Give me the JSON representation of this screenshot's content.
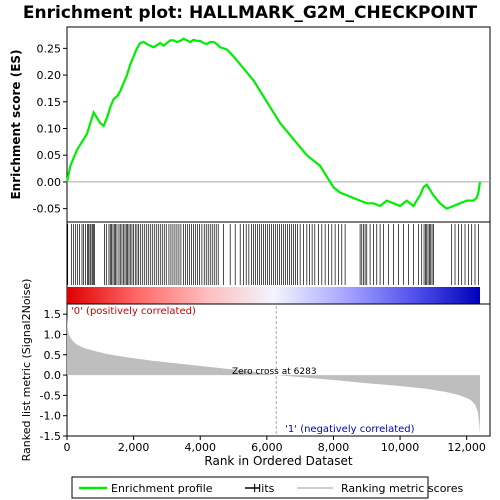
{
  "chart_data": {
    "type": "line",
    "title": "Enrichment plot: HALLMARK_G2M_CHECKPOINT",
    "es_panel": {
      "ylabel": "Enrichment score (ES)",
      "ylim": [
        -0.075,
        0.29
      ],
      "yticks": [
        -0.05,
        0.0,
        0.05,
        0.1,
        0.15,
        0.2,
        0.25
      ],
      "ytick_labels": [
        "-0.05",
        "0.00",
        "0.05",
        "0.10",
        "0.15",
        "0.20",
        "0.25"
      ],
      "series": [
        {
          "name": "Enrichment profile",
          "color": "#00ee00",
          "x": [
            0,
            100,
            200,
            300,
            400,
            500,
            600,
            700,
            800,
            900,
            1000,
            1100,
            1200,
            1300,
            1400,
            1500,
            1600,
            1700,
            1800,
            1900,
            2000,
            2100,
            2200,
            2300,
            2400,
            2500,
            2600,
            2700,
            2800,
            2900,
            3000,
            3100,
            3200,
            3300,
            3400,
            3500,
            3600,
            3700,
            3800,
            3900,
            4000,
            4100,
            4200,
            4300,
            4400,
            4500,
            4600,
            4800,
            5000,
            5200,
            5400,
            5600,
            5800,
            6000,
            6200,
            6400,
            6600,
            6800,
            7000,
            7200,
            7400,
            7600,
            7800,
            8000,
            8200,
            8400,
            8600,
            8800,
            9000,
            9200,
            9400,
            9600,
            9800,
            10000,
            10200,
            10400,
            10600,
            10700,
            10800,
            10900,
            11000,
            11200,
            11400,
            11600,
            11800,
            12000,
            12200,
            12300,
            12350,
            12400
          ],
          "y": [
            0.0,
            0.03,
            0.045,
            0.06,
            0.07,
            0.08,
            0.09,
            0.11,
            0.13,
            0.12,
            0.11,
            0.105,
            0.12,
            0.14,
            0.155,
            0.16,
            0.17,
            0.185,
            0.2,
            0.22,
            0.235,
            0.25,
            0.26,
            0.262,
            0.258,
            0.255,
            0.252,
            0.256,
            0.26,
            0.255,
            0.26,
            0.265,
            0.265,
            0.262,
            0.264,
            0.268,
            0.265,
            0.262,
            0.266,
            0.264,
            0.264,
            0.26,
            0.258,
            0.262,
            0.262,
            0.258,
            0.252,
            0.248,
            0.235,
            0.22,
            0.205,
            0.19,
            0.17,
            0.15,
            0.13,
            0.11,
            0.095,
            0.08,
            0.065,
            0.05,
            0.04,
            0.03,
            0.01,
            -0.01,
            -0.02,
            -0.025,
            -0.03,
            -0.035,
            -0.04,
            -0.04,
            -0.045,
            -0.035,
            -0.04,
            -0.045,
            -0.035,
            -0.045,
            -0.025,
            -0.01,
            -0.005,
            -0.015,
            -0.025,
            -0.04,
            -0.05,
            -0.045,
            -0.04,
            -0.035,
            -0.035,
            -0.03,
            -0.02,
            0.0
          ]
        }
      ]
    },
    "hits": [
      20,
      130,
      200,
      260,
      310,
      380,
      450,
      500,
      560,
      620,
      650,
      690,
      720,
      760,
      790,
      830,
      1130,
      1180,
      1260,
      1300,
      1340,
      1380,
      1420,
      1460,
      1500,
      1560,
      1600,
      1650,
      1700,
      1740,
      1780,
      1820,
      1860,
      1900,
      1950,
      2000,
      2050,
      2100,
      2150,
      2200,
      2260,
      2320,
      2380,
      2440,
      2500,
      2560,
      2620,
      2680,
      2740,
      2800,
      2860,
      2920,
      2980,
      3060,
      3120,
      3180,
      3240,
      3300,
      3360,
      3420,
      3500,
      3560,
      3620,
      3680,
      3740,
      3800,
      3860,
      3920,
      3980,
      4050,
      4120,
      4180,
      4240,
      4300,
      4360,
      4420,
      4480,
      4540,
      4700,
      4900,
      5050,
      5200,
      5300,
      5380,
      5460,
      5540,
      5600,
      5660,
      5720,
      5780,
      5840,
      5900,
      5960,
      6020,
      6080,
      6140,
      6200,
      6260,
      6320,
      6380,
      6440,
      6500,
      6560,
      6620,
      6680,
      6740,
      6800,
      6860,
      6920,
      7000,
      7100,
      7200,
      7280,
      7360,
      7440,
      7550,
      7650,
      7750,
      7850,
      7950,
      8050,
      8150,
      8250,
      8350,
      8800,
      8850,
      8900,
      8950,
      9000,
      9100,
      9200,
      9300,
      9400,
      9500,
      9650,
      9800,
      9950,
      10100,
      10250,
      10400,
      10550,
      10650,
      10720,
      10760,
      10800,
      10840,
      10880,
      10920,
      10960,
      11000,
      11550,
      11650,
      11750,
      11850,
      11950,
      12050,
      12150,
      12250,
      12350
    ],
    "metric_panel": {
      "ylabel": "Ranked list metric (Signal2Noise)",
      "xlabel": "Rank in Ordered Dataset",
      "ylim": [
        -1.5,
        1.75
      ],
      "yticks": [
        -1.5,
        -1.0,
        -0.5,
        0.0,
        0.5,
        1.0,
        1.5
      ],
      "ytick_labels": [
        "-1.5",
        "-1.0",
        "-0.5",
        "0.0",
        "0.5",
        "1.0",
        "1.5"
      ],
      "xlim": [
        0,
        12700
      ],
      "xticks": [
        0,
        2000,
        4000,
        6000,
        8000,
        10000,
        12000
      ],
      "xtick_labels": [
        "0",
        "2,000",
        "4,000",
        "6,000",
        "8,000",
        "10,000",
        "12,000"
      ],
      "profile": {
        "x": [
          0,
          20,
          60,
          120,
          200,
          300,
          500,
          800,
          1200,
          1800,
          2500,
          3500,
          4500,
          5500,
          6283,
          7000,
          8000,
          9000,
          10000,
          10800,
          11400,
          11800,
          12100,
          12250,
          12330,
          12380,
          12400
        ],
        "y": [
          1.45,
          1.15,
          1.0,
          0.9,
          0.82,
          0.75,
          0.67,
          0.6,
          0.52,
          0.44,
          0.36,
          0.27,
          0.18,
          0.09,
          0.0,
          -0.05,
          -0.12,
          -0.2,
          -0.27,
          -0.34,
          -0.42,
          -0.5,
          -0.6,
          -0.72,
          -0.9,
          -1.2,
          -1.45
        ]
      },
      "color": "#bebebe",
      "annotations": {
        "positive": "'0' (positively correlated)",
        "zero_cross": "Zero cross at 6283",
        "negative": "'1' (negatively correlated)"
      },
      "zero_cross": 6283
    },
    "legend": {
      "items": [
        {
          "label": "Enrichment profile",
          "color": "#00ee00"
        },
        {
          "label": "Hits",
          "color": "#000000"
        },
        {
          "label": "Ranking metric scores",
          "color": "#bebebe"
        }
      ],
      "placement": "bottom"
    },
    "heat_bar": {
      "stops": [
        "#dd0000",
        "#ff6666",
        "#ffbbbb",
        "#f4f4ff",
        "#aaaaff",
        "#5555ee",
        "#0000bb"
      ]
    },
    "n_total": 12400
  }
}
